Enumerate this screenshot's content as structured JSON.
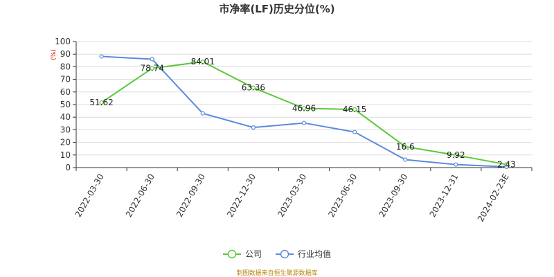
{
  "chart_data": {
    "type": "line",
    "title": "市净率(LF)历史分位(%)",
    "unit_label": "(%)",
    "categories": [
      "2022-03-30",
      "2022-06-30",
      "2022-09-30",
      "2022-12-30",
      "2023-03-30",
      "2023-06-30",
      "2023-09-30",
      "2023-12-31",
      "2024-02-23E"
    ],
    "ylim": [
      0,
      100
    ],
    "yticks": [
      0,
      10,
      20,
      30,
      40,
      50,
      60,
      70,
      80,
      90,
      100
    ],
    "grid": true,
    "legend_position": "bottom-center",
    "series": [
      {
        "name": "公司",
        "color": "#5cc73a",
        "values": [
          51.62,
          78.74,
          84.01,
          63.36,
          46.96,
          46.15,
          16.6,
          9.92,
          2.43
        ],
        "show_labels": true
      },
      {
        "name": "行业均值",
        "color": "#5b8bdc",
        "values": [
          88.2,
          86.0,
          43.0,
          31.8,
          35.4,
          28.2,
          6.3,
          2.4,
          0.6
        ],
        "show_labels": false
      }
    ]
  },
  "source_note": "制图数据来自恒生聚源数据库"
}
